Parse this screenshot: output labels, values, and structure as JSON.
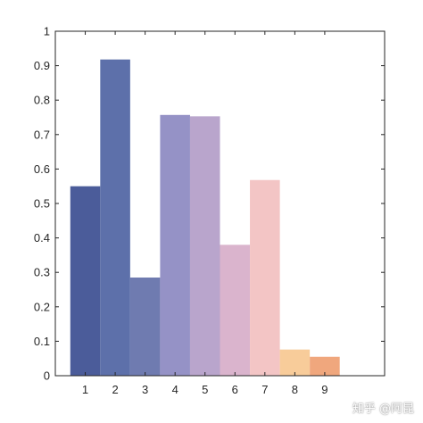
{
  "chart_data": {
    "type": "bar",
    "categories": [
      "1",
      "2",
      "3",
      "4",
      "5",
      "6",
      "7",
      "8",
      "9"
    ],
    "values": [
      0.55,
      0.918,
      0.285,
      0.757,
      0.753,
      0.38,
      0.568,
      0.076,
      0.055
    ],
    "colors": [
      "#4b5c9a",
      "#5d70aa",
      "#6f7bb0",
      "#9592c6",
      "#b9a5cc",
      "#dab4cd",
      "#f3c5c5",
      "#f8cc9a",
      "#f0a77d"
    ],
    "ylim": [
      0,
      1
    ],
    "xlim": [
      0,
      11
    ],
    "yticks": [
      "0",
      "0.1",
      "0.2",
      "0.3",
      "0.4",
      "0.5",
      "0.6",
      "0.7",
      "0.8",
      "0.9",
      "1"
    ],
    "xlabel": "",
    "ylabel": "",
    "title": "",
    "grid": false,
    "bar_width": 1
  },
  "watermark": "知乎 @阿昆"
}
